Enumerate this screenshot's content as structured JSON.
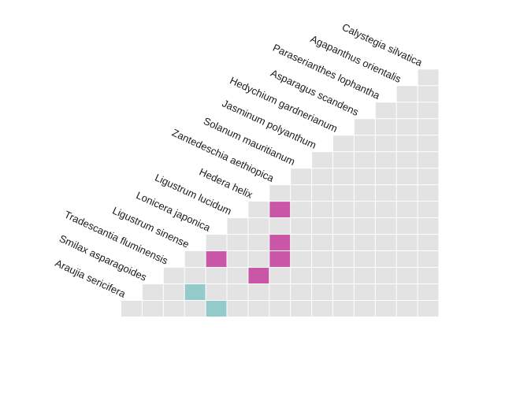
{
  "chart_data": {
    "type": "heatmap",
    "layout": "lower-triangle co-occurrence matrix, labels rotated along the diagonal",
    "species": [
      "Araujia sericifera",
      "Smilax asparagoides",
      "Tradescantia fluminensis",
      "Ligustrum sinense",
      "Lonicera japonica",
      "Ligustrum lucidum",
      "Hedera helix",
      "Zantedeschia aethiopica",
      "Solanum mauritianum",
      "Jasminum polyanthum",
      "Hedychium gardnerianum",
      "Asparagus scandens",
      "Paraserianthes lophantha",
      "Agapanthus orientalis",
      "Calystegia silvatica"
    ],
    "colors": {
      "empty": "#e3e3e3",
      "magenta": "#c956a6",
      "teal": "#93cbcb",
      "grid": "#ffffff"
    },
    "highlighted_cells": [
      {
        "a": "Smilax asparagoides",
        "b": "Ligustrum sinense",
        "color": "teal"
      },
      {
        "a": "Araujia sericifera",
        "b": "Lonicera japonica",
        "color": "teal"
      },
      {
        "a": "Tradescantia fluminensis",
        "b": "Hedera helix",
        "color": "magenta"
      },
      {
        "a": "Ligustrum sinense",
        "b": "Lonicera japonica",
        "color": "magenta"
      },
      {
        "a": "Ligustrum sinense",
        "b": "Zantedeschia aethiopica",
        "color": "magenta"
      },
      {
        "a": "Zantedeschia aethiopica",
        "b": "Hedera helix",
        "color": "magenta"
      },
      {
        "a": "Zantedeschia aethiopica",
        "b": "Lonicera japonica",
        "color": "magenta"
      }
    ],
    "legend": "none",
    "xlabel": "",
    "ylabel": ""
  }
}
